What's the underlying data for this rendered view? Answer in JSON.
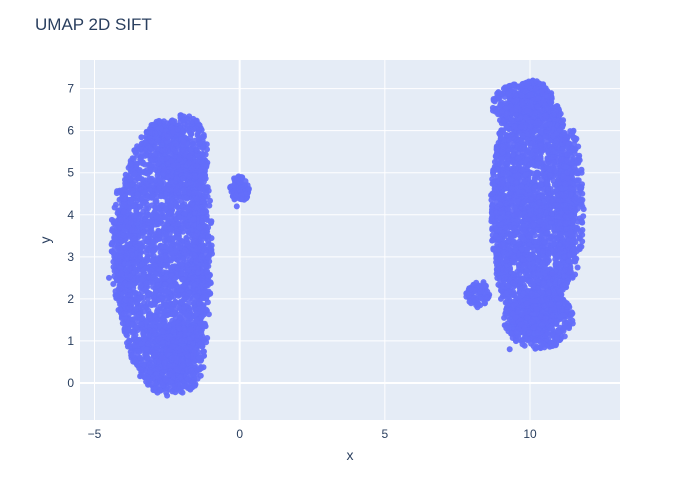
{
  "chart_data": {
    "type": "scatter",
    "title": "UMAP 2D SIFT",
    "xlabel": "x",
    "ylabel": "y",
    "xlim": [
      -5.5,
      13.1
    ],
    "ylim": [
      -0.88,
      7.68
    ],
    "x_ticks": [
      {
        "value": -5,
        "label": "−5"
      },
      {
        "value": 0,
        "label": "0"
      },
      {
        "value": 5,
        "label": "5"
      },
      {
        "value": 10,
        "label": "10"
      }
    ],
    "y_ticks": [
      {
        "value": 0,
        "label": "0"
      },
      {
        "value": 1,
        "label": "1"
      },
      {
        "value": 2,
        "label": "2"
      },
      {
        "value": 3,
        "label": "3"
      },
      {
        "value": 4,
        "label": "4"
      },
      {
        "value": 5,
        "label": "5"
      },
      {
        "value": 6,
        "label": "6"
      },
      {
        "value": 7,
        "label": "7"
      }
    ],
    "grid": true,
    "legend": "none",
    "marker_color": "#636efa",
    "plot_bgcolor": "#e5ecf6",
    "series": [
      {
        "values": [
          {
            "x": -2.6,
            "y": 3.0
          },
          {
            "x": -3.0,
            "y": 4.0
          },
          {
            "x": -2.2,
            "y": 5.5
          },
          {
            "x": -3.5,
            "y": 2.0
          },
          {
            "x": -2.0,
            "y": 1.0
          },
          {
            "x": -1.6,
            "y": 0.2
          },
          {
            "x": -4.0,
            "y": 3.5
          },
          {
            "x": -1.4,
            "y": 6.0
          },
          {
            "x": -4.5,
            "y": 2.5
          },
          {
            "x": -3.2,
            "y": 0.8
          },
          {
            "x": -1.3,
            "y": 3.0
          },
          {
            "x": -2.5,
            "y": -0.3
          },
          {
            "x": 0.0,
            "y": 4.6
          },
          {
            "x": 0.2,
            "y": 4.8
          },
          {
            "x": -0.1,
            "y": 4.2
          },
          {
            "x": 10.0,
            "y": 4.0
          },
          {
            "x": 9.5,
            "y": 6.5
          },
          {
            "x": 10.5,
            "y": 7.0
          },
          {
            "x": 11.2,
            "y": 3.0
          },
          {
            "x": 9.0,
            "y": 2.0
          },
          {
            "x": 10.2,
            "y": 1.0
          },
          {
            "x": 11.8,
            "y": 4.5
          },
          {
            "x": 8.7,
            "y": 4.5
          },
          {
            "x": 7.9,
            "y": 2.1
          },
          {
            "x": 8.4,
            "y": 2.4
          },
          {
            "x": 9.3,
            "y": 0.8
          },
          {
            "x": 11.5,
            "y": 6.0
          },
          {
            "x": 10.8,
            "y": 5.5
          }
        ]
      }
    ],
    "density_regions": [
      {
        "cx": -2.65,
        "cy": 3.0,
        "rx": 1.6,
        "ry": 3.25,
        "n": 2600
      },
      {
        "cx": -1.9,
        "cy": 5.4,
        "rx": 0.8,
        "ry": 1.0,
        "n": 350
      },
      {
        "cx": -2.1,
        "cy": 0.6,
        "rx": 0.9,
        "ry": 0.85,
        "n": 400
      },
      {
        "cx": -4.0,
        "cy": 3.2,
        "rx": 0.45,
        "ry": 1.6,
        "n": 250
      },
      {
        "cx": -1.3,
        "cy": 3.1,
        "rx": 0.35,
        "ry": 2.4,
        "n": 200
      },
      {
        "cx": 0.0,
        "cy": 4.62,
        "rx": 0.35,
        "ry": 0.3,
        "n": 90
      },
      {
        "cx": 10.1,
        "cy": 4.1,
        "rx": 1.45,
        "ry": 3.1,
        "n": 2800
      },
      {
        "cx": 9.7,
        "cy": 6.6,
        "rx": 1.0,
        "ry": 0.55,
        "n": 300
      },
      {
        "cx": 10.3,
        "cy": 1.5,
        "rx": 1.2,
        "ry": 0.7,
        "n": 400
      },
      {
        "cx": 11.4,
        "cy": 4.2,
        "rx": 0.45,
        "ry": 1.8,
        "n": 250
      },
      {
        "cx": 8.2,
        "cy": 2.1,
        "rx": 0.4,
        "ry": 0.3,
        "n": 90
      }
    ]
  }
}
